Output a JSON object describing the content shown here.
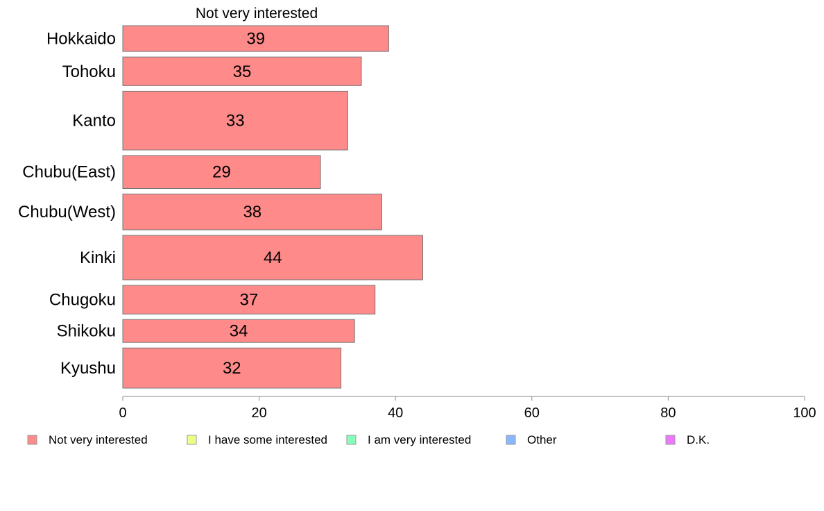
{
  "chart_data": {
    "type": "bar",
    "orientation": "horizontal",
    "title": "Not very interested",
    "categories": [
      "Hokkaido",
      "Tohoku",
      "Kanto",
      "Chubu(East)",
      "Chubu(West)",
      "Kinki",
      "Chugoku",
      "Shikoku",
      "Kyushu"
    ],
    "series": [
      {
        "name": "Not very interested",
        "values": [
          39,
          35,
          33,
          29,
          38,
          44,
          37,
          34,
          32
        ]
      }
    ],
    "bar_thickness_relative": [
      0.9,
      1.0,
      2.05,
      1.15,
      1.25,
      1.55,
      1.0,
      0.8,
      1.4
    ],
    "xlim": [
      0,
      100
    ],
    "xticks": [
      0,
      20,
      40,
      60,
      80,
      100
    ],
    "grid": false,
    "legend_position": "bottom",
    "legend": [
      {
        "label": "Not very interested",
        "color": "#ff8a8a"
      },
      {
        "label": "I have some interested",
        "color": "#eeff88"
      },
      {
        "label": "I am very interested",
        "color": "#88ffbb"
      },
      {
        "label": "Other",
        "color": "#88b8ff"
      },
      {
        "label": "D.K.",
        "color": "#ee77ff"
      }
    ],
    "bar_color": "#ff8a8a",
    "bar_edge_color": "#777777",
    "axis_color": "#888888"
  }
}
